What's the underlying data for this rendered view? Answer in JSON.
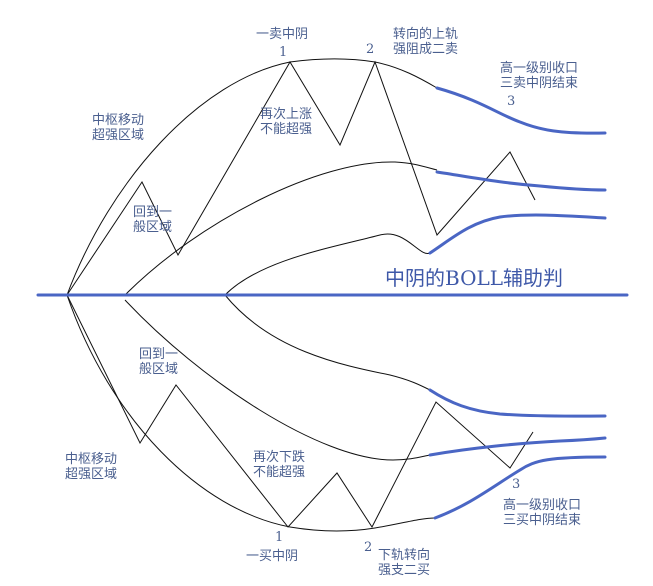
{
  "colors": {
    "midline": "#4a66c4",
    "band_blue": "#4a66c4",
    "line": "#111111",
    "text": "#4a5f8f"
  },
  "title": "中阴的BOLL辅助判",
  "top": {
    "sell1": "一卖中阴",
    "n1": "1",
    "n2": "2",
    "n3": "3",
    "sell2": [
      "转向的上轨",
      "强阻成二卖"
    ],
    "sell3": [
      "高一级别收口",
      "三卖中阴结束"
    ],
    "strong_zone": [
      "中枢移动",
      "超强区域"
    ],
    "normal_zone": [
      "回到一",
      "般区域"
    ],
    "not_strong": [
      "再次上涨",
      "不能超强"
    ]
  },
  "bottom": {
    "buy1": "一买中阴",
    "n1": "1",
    "n2": "2",
    "n3": "3",
    "buy2": [
      "下轨转向",
      "强支二买"
    ],
    "buy3": [
      "高一级别收口",
      "三买中阴结束"
    ],
    "strong_zone": [
      "中枢移动",
      "超强区域"
    ],
    "normal_zone": [
      "回到一",
      "般区域"
    ],
    "not_strong": [
      "再次下跌",
      "不能超强"
    ]
  }
}
